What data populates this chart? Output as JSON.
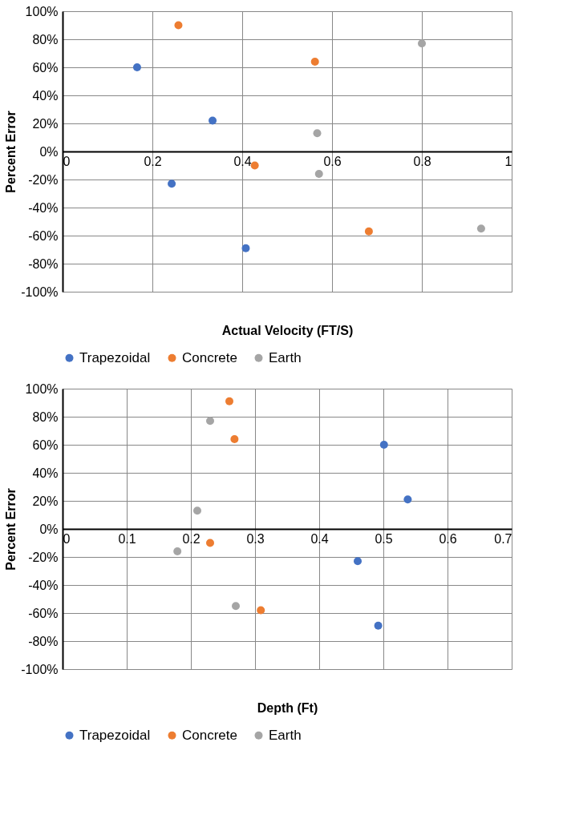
{
  "chart_data": [
    {
      "type": "scatter",
      "xlabel": "Actual Velocity (FT/S)",
      "ylabel": "Percent Error",
      "xlim": [
        0,
        1
      ],
      "xticks": [
        0,
        0.2,
        0.4,
        0.6,
        0.8,
        1
      ],
      "ylim": [
        -100,
        100
      ],
      "yticks": [
        {
          "value": -100,
          "label": "-100%"
        },
        {
          "value": -80,
          "label": "-80%"
        },
        {
          "value": -60,
          "label": "-60%"
        },
        {
          "value": -40,
          "label": "-40%"
        },
        {
          "value": -20,
          "label": "-20%"
        },
        {
          "value": 0,
          "label": "0%"
        },
        {
          "value": 20,
          "label": "20%"
        },
        {
          "value": 40,
          "label": "40%"
        },
        {
          "value": 60,
          "label": "60%"
        },
        {
          "value": 80,
          "label": "80%"
        },
        {
          "value": 100,
          "label": "100%"
        }
      ],
      "grid": true,
      "legend": "bottom",
      "marker": "circle",
      "series": [
        {
          "name": "Trapezoidal",
          "color": "#4472c4",
          "x": [
            0.166,
            0.334,
            0.243,
            0.408
          ],
          "values": [
            60,
            22,
            -23,
            -69
          ]
        },
        {
          "name": "Concrete",
          "color": "#ed7d31",
          "x": [
            0.258,
            0.562,
            0.428,
            0.682
          ],
          "values": [
            90,
            64,
            -10,
            -57
          ]
        },
        {
          "name": "Earth",
          "color": "#a5a5a5",
          "x": [
            0.8,
            0.567,
            0.571,
            0.932
          ],
          "values": [
            77,
            13,
            -16,
            -55
          ]
        }
      ]
    },
    {
      "type": "scatter",
      "xlabel": "Depth (Ft)",
      "ylabel": "Percent Error",
      "xlim": [
        0,
        0.7
      ],
      "xticks": [
        0,
        0.1,
        0.2,
        0.3,
        0.4,
        0.5,
        0.6,
        0.7
      ],
      "ylim": [
        -100,
        100
      ],
      "yticks": [
        {
          "value": -100,
          "label": "-100%"
        },
        {
          "value": -80,
          "label": "-80%"
        },
        {
          "value": -60,
          "label": "-60%"
        },
        {
          "value": -40,
          "label": "-40%"
        },
        {
          "value": -20,
          "label": "-20%"
        },
        {
          "value": 0,
          "label": "0%"
        },
        {
          "value": 20,
          "label": "20%"
        },
        {
          "value": 40,
          "label": "40%"
        },
        {
          "value": 60,
          "label": "60%"
        },
        {
          "value": 80,
          "label": "80%"
        },
        {
          "value": 100,
          "label": "100%"
        }
      ],
      "grid": true,
      "legend": "bottom",
      "marker": "circle",
      "series": [
        {
          "name": "Trapezoidal",
          "color": "#4472c4",
          "x": [
            0.501,
            0.538,
            0.46,
            0.492
          ],
          "values": [
            60,
            21,
            -23,
            -69
          ]
        },
        {
          "name": "Concrete",
          "color": "#ed7d31",
          "x": [
            0.26,
            0.268,
            0.23,
            0.309
          ],
          "values": [
            91,
            64,
            -10,
            -58
          ]
        },
        {
          "name": "Earth",
          "color": "#a5a5a5",
          "x": [
            0.23,
            0.21,
            0.179,
            0.27
          ],
          "values": [
            77,
            13,
            -16,
            -55
          ]
        }
      ]
    }
  ]
}
